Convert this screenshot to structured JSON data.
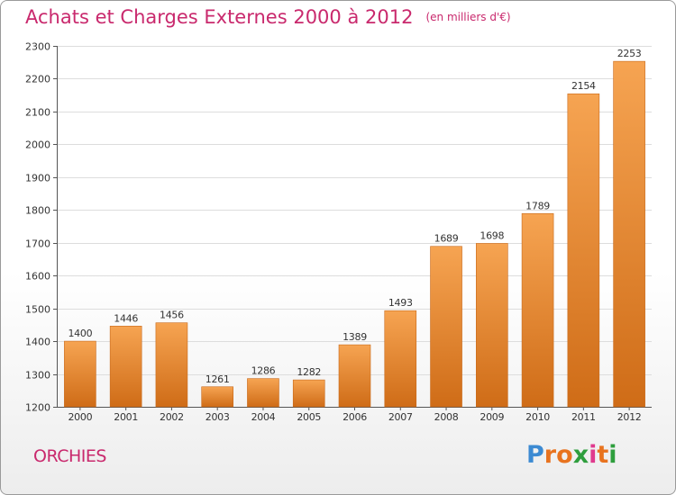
{
  "header": {
    "title": "Achats et Charges Externes 2000 à 2012",
    "unit": "(en milliers d'€)"
  },
  "footer": {
    "commune": "ORCHIES",
    "logo_text": "Proxiti",
    "logo_colors": [
      "#3c8ad2",
      "#e8731f",
      "#e8731f",
      "#2e9e3d",
      "#e03a8e",
      "#e8731f",
      "#2e9e3d"
    ]
  },
  "colors": {
    "bar_top": "#f6a452",
    "bar_bottom": "#cf6c17",
    "title": "#c9296d",
    "grid": "#dddddd"
  },
  "chart_data": {
    "type": "bar",
    "title": "Achats et Charges Externes 2000 à 2012",
    "subtitle": "(en milliers d'€)",
    "xlabel": "",
    "ylabel": "",
    "categories": [
      "2000",
      "2001",
      "2002",
      "2003",
      "2004",
      "2005",
      "2006",
      "2007",
      "2008",
      "2009",
      "2010",
      "2011",
      "2012"
    ],
    "values": [
      1400,
      1446,
      1456,
      1261,
      1286,
      1282,
      1389,
      1493,
      1689,
      1698,
      1789,
      2154,
      2253
    ],
    "ylim": [
      1200,
      2300
    ],
    "yticks": [
      1200,
      1300,
      1400,
      1500,
      1600,
      1700,
      1800,
      1900,
      2000,
      2100,
      2200,
      2300
    ],
    "grid": true,
    "data_labels": true
  }
}
